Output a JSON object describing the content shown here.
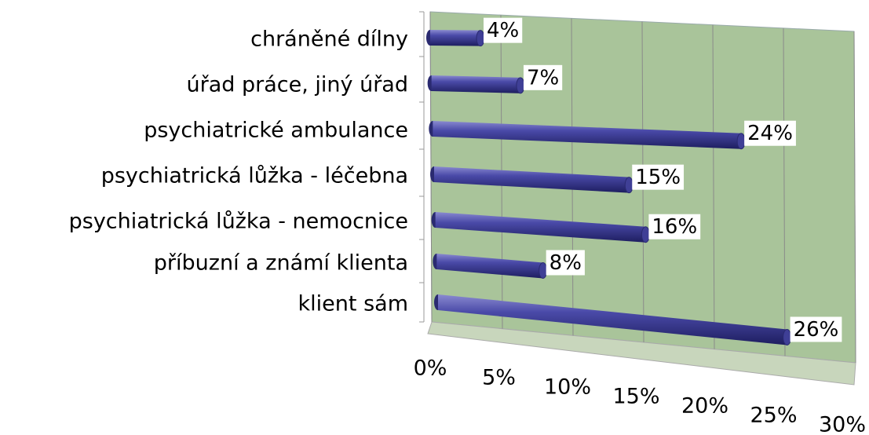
{
  "chart_data": {
    "type": "bar",
    "orientation": "horizontal",
    "categories": [
      "chráněné dílny",
      "úřad práce, jiný úřad",
      "psychiatrické ambulance",
      "psychiatrická lůžka - léčebna",
      "psychiatrická lůžka - nemocnice",
      "příbuzní a známí klienta",
      "klient sám"
    ],
    "values": [
      4,
      7,
      24,
      15,
      16,
      8,
      26
    ],
    "value_labels": [
      "4%",
      "7%",
      "24%",
      "15%",
      "16%",
      "8%",
      "26%"
    ],
    "color": "#3f3f96",
    "xlim": [
      0,
      30
    ],
    "xticks": [
      {
        "value": 0,
        "label": "0%"
      },
      {
        "value": 5,
        "label": "5%"
      },
      {
        "value": 10,
        "label": "10%"
      },
      {
        "value": 15,
        "label": "15%"
      },
      {
        "value": 20,
        "label": "20%"
      },
      {
        "value": 25,
        "label": "25%"
      },
      {
        "value": 30,
        "label": "30%"
      }
    ],
    "grid": true
  }
}
